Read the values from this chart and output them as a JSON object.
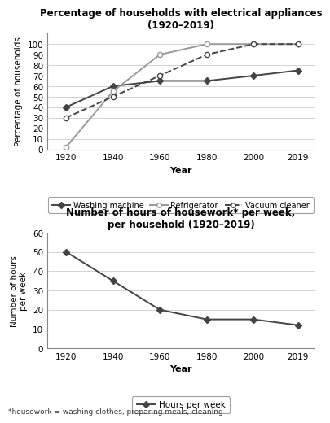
{
  "years": [
    1920,
    1940,
    1960,
    1980,
    2000,
    2019
  ],
  "washing_machine": [
    40,
    60,
    65,
    65,
    70,
    75
  ],
  "refrigerator": [
    2,
    55,
    90,
    100,
    100,
    100
  ],
  "vacuum_cleaner": [
    30,
    50,
    70,
    90,
    100,
    100
  ],
  "hours_per_week": [
    50,
    35,
    20,
    15,
    15,
    12
  ],
  "chart1_title": "Percentage of households with electrical appliances\n(1920–2019)",
  "chart1_ylabel": "Percentage of households",
  "chart1_xlabel": "Year",
  "chart1_ylim": [
    0,
    110
  ],
  "chart1_yticks": [
    0,
    10,
    20,
    30,
    40,
    50,
    60,
    70,
    80,
    90,
    100
  ],
  "chart2_title": "Number of hours of housework* per week,\nper household (1920–2019)",
  "chart2_ylabel": "Number of hours\nper week",
  "chart2_xlabel": "Year",
  "chart2_ylim": [
    0,
    60
  ],
  "chart2_yticks": [
    0,
    10,
    20,
    30,
    40,
    50,
    60
  ],
  "footnote": "*housework = washing clothes, preparing meals, cleaning",
  "line_color_dark": "#444444",
  "line_color_mid": "#999999",
  "bg_color": "#ffffff"
}
